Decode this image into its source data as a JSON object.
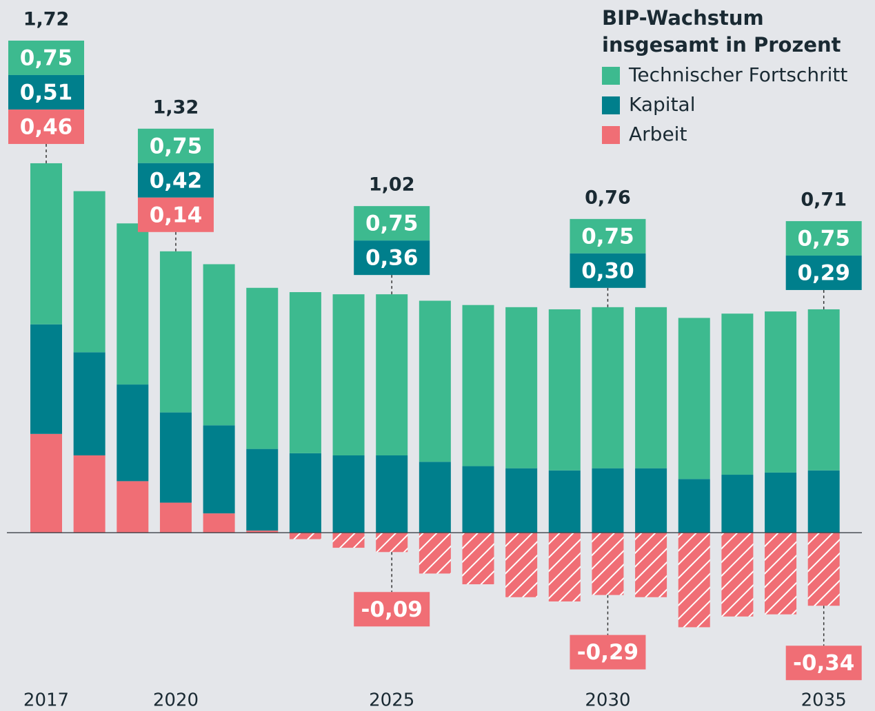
{
  "chart_data": {
    "type": "stacked_bar",
    "legend_title": [
      "BIP-Wachstum",
      "insgesamt in Prozent"
    ],
    "categories": [
      "2017",
      null,
      null,
      "2020",
      null,
      null,
      null,
      null,
      "2025",
      null,
      null,
      null,
      null,
      "2030",
      null,
      null,
      null,
      null,
      "2035"
    ],
    "series": [
      {
        "name": "Technischer Fortschritt",
        "color": "#3dba8f",
        "values": [
          0.75,
          0.75,
          0.75,
          0.75,
          0.75,
          0.75,
          0.75,
          0.75,
          0.75,
          0.75,
          0.75,
          0.75,
          0.75,
          0.75,
          0.75,
          0.75,
          0.75,
          0.75,
          0.75
        ],
        "value_labels": [
          "0,75",
          null,
          null,
          "0,75",
          null,
          null,
          null,
          null,
          "0,75",
          null,
          null,
          null,
          null,
          "0,75",
          null,
          null,
          null,
          null,
          "0,75"
        ]
      },
      {
        "name": "Kapital",
        "color": "#007f8c",
        "values": [
          0.51,
          0.48,
          0.45,
          0.42,
          0.41,
          0.38,
          0.37,
          0.36,
          0.36,
          0.33,
          0.31,
          0.3,
          0.29,
          0.3,
          0.3,
          0.25,
          0.27,
          0.28,
          0.29
        ],
        "value_labels": [
          "0,51",
          null,
          null,
          "0,42",
          null,
          null,
          null,
          null,
          "0,36",
          null,
          null,
          null,
          null,
          "0,30",
          null,
          null,
          null,
          null,
          "0,29"
        ]
      },
      {
        "name": "Arbeit",
        "color": "#f06e75",
        "values": [
          0.46,
          0.36,
          0.24,
          0.14,
          0.09,
          0.01,
          -0.03,
          -0.07,
          -0.09,
          -0.19,
          -0.24,
          -0.3,
          -0.32,
          -0.29,
          -0.3,
          -0.44,
          -0.39,
          -0.38,
          -0.34
        ],
        "value_labels": [
          "0,46",
          null,
          null,
          "0,14",
          null,
          null,
          null,
          null,
          "-0,09",
          null,
          null,
          null,
          null,
          "-0,29",
          null,
          null,
          null,
          null,
          "-0,34"
        ]
      }
    ],
    "totals": [
      1.72,
      null,
      null,
      1.32,
      null,
      null,
      null,
      null,
      1.02,
      null,
      null,
      null,
      null,
      0.76,
      null,
      null,
      null,
      null,
      0.71
    ],
    "total_labels": [
      "1,72",
      null,
      null,
      "1,32",
      null,
      null,
      null,
      null,
      "1,02",
      null,
      null,
      null,
      null,
      "0,76",
      null,
      null,
      null,
      null,
      "0,71"
    ],
    "negative_pattern": "hatched",
    "ylim": [
      -0.83,
      2.48
    ],
    "legend": "top-right"
  }
}
